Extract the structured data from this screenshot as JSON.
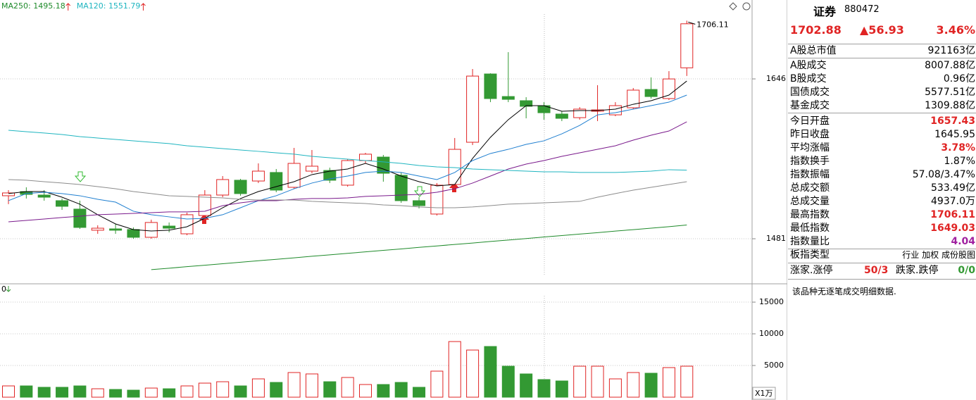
{
  "chart_data": [
    {
      "type": "candlestick",
      "ylim": [
        1434.5,
        1723.8
      ],
      "yticks": [
        1481,
        1646
      ],
      "up_color": "#e02424",
      "down_color": "#339933",
      "grid": true,
      "open": [
        1525.4,
        1529.7,
        1526.1,
        1520.3,
        1511.6,
        1489.8,
        1491.2,
        1490.5,
        1482.5,
        1494.1,
        1486.1,
        1505.0,
        1526.1,
        1541.4,
        1540.6,
        1549.4,
        1534.1,
        1550.8,
        1551.5,
        1536.3,
        1561.7,
        1565.3,
        1546.5,
        1520.3,
        1506.5,
        1537.0,
        1580.6,
        1651.1,
        1627.8,
        1623.5,
        1618.4,
        1609.7,
        1606.0,
        1612.6,
        1608.9,
        1616.2,
        1635.1,
        1625.7,
        1657.43
      ],
      "high": [
        1531.2,
        1534.1,
        1531.2,
        1522.5,
        1520.3,
        1494.9,
        1496.3,
        1492.7,
        1500.7,
        1497.8,
        1507.9,
        1531.2,
        1545.7,
        1542.8,
        1558.8,
        1553.0,
        1574.8,
        1572.6,
        1554.4,
        1563.2,
        1569.7,
        1567.5,
        1549.4,
        1523.9,
        1538.5,
        1585.0,
        1656.2,
        1651.8,
        1673.6,
        1627.1,
        1622.0,
        1612.6,
        1616.9,
        1639.5,
        1622.0,
        1636.6,
        1647.5,
        1654.0,
        1706.11
      ],
      "low": [
        1516.7,
        1522.5,
        1520.3,
        1510.8,
        1491.2,
        1486.1,
        1486.1,
        1481.0,
        1481.0,
        1487.6,
        1484.7,
        1502.1,
        1523.9,
        1525.4,
        1538.5,
        1529.0,
        1532.6,
        1548.6,
        1538.5,
        1534.8,
        1558.8,
        1539.9,
        1518.1,
        1512.3,
        1505.0,
        1531.2,
        1577.7,
        1622.0,
        1622.0,
        1605.3,
        1603.9,
        1602.4,
        1603.9,
        1602.4,
        1607.5,
        1614.8,
        1625.7,
        1624.2,
        1649.03
      ],
      "close": [
        1528.3,
        1526.8,
        1523.9,
        1514.5,
        1492.7,
        1491.9,
        1489.8,
        1482.5,
        1497.8,
        1491.9,
        1505.8,
        1526.1,
        1542.1,
        1527.6,
        1550.8,
        1531.2,
        1558.8,
        1555.9,
        1541.4,
        1561.7,
        1568.3,
        1548.6,
        1520.3,
        1515.2,
        1536.3,
        1573.3,
        1648.9,
        1625.7,
        1624.9,
        1617.7,
        1611.1,
        1605.3,
        1614.8,
        1614.0,
        1618.4,
        1634.4,
        1627.8,
        1645.95,
        1702.88
      ],
      "series": [
        {
          "color": "#000000",
          "values": [
            1527.6,
            1529.7,
            1529.7,
            1523.9,
            1516.7,
            1505.8,
            1496.3,
            1490.5,
            1489.0,
            1489.8,
            1493.4,
            1502.1,
            1513.0,
            1522.5,
            1529.7,
            1534.8,
            1539.9,
            1547.2,
            1550.8,
            1553.0,
            1558.8,
            1553.0,
            1545.7,
            1539.9,
            1535.5,
            1537.0,
            1563.9,
            1585.7,
            1603.9,
            1618.4,
            1618.4,
            1612.6,
            1613.3,
            1613.3,
            1614.8,
            1619.8,
            1623.5,
            1629.3,
            1643.8
          ]
        },
        {
          "color": "#1f7fd0",
          "values": [
            1520.3,
            1527.6,
            1529.0,
            1527.6,
            1525.4,
            1521.7,
            1518.8,
            1509.4,
            1505.8,
            1503.6,
            1501.4,
            1502.1,
            1505.8,
            1513.0,
            1520.3,
            1525.4,
            1532.6,
            1538.5,
            1542.8,
            1545.7,
            1549.4,
            1550.8,
            1549.4,
            1545.7,
            1542.1,
            1549.4,
            1561.7,
            1569.0,
            1573.3,
            1578.4,
            1582.1,
            1589.3,
            1598.0,
            1608.9,
            1611.1,
            1614.8,
            1618.4,
            1622.0,
            1629.3
          ]
        },
        {
          "color": "#7a1a8c",
          "values": [
            1498.5,
            1499.9,
            1501.4,
            1502.9,
            1504.3,
            1505.8,
            1506.5,
            1507.2,
            1507.9,
            1508.7,
            1508.7,
            1509.4,
            1515.2,
            1518.1,
            1520.3,
            1520.3,
            1521.7,
            1522.5,
            1522.5,
            1523.2,
            1524.7,
            1525.4,
            1526.1,
            1526.8,
            1529.0,
            1532.6,
            1538.5,
            1545.7,
            1553.0,
            1558.1,
            1561.7,
            1566.1,
            1569.7,
            1573.3,
            1577.0,
            1582.8,
            1587.9,
            1592.2,
            1601.7
          ]
        },
        {
          "color": "#8c8c8c",
          "values": [
            1542.1,
            1541.4,
            1539.9,
            1538.5,
            1537.0,
            1534.8,
            1532.6,
            1529.7,
            1527.6,
            1525.4,
            1524.7,
            1523.9,
            1523.2,
            1521.7,
            1521.0,
            1521.0,
            1521.0,
            1519.6,
            1518.8,
            1518.1,
            1517.4,
            1515.9,
            1515.2,
            1513.8,
            1513.0,
            1513.0,
            1513.8,
            1515.2,
            1516.7,
            1517.4,
            1518.1,
            1518.8,
            1519.6,
            1523.9,
            1527.6,
            1531.2,
            1534.1,
            1537.0,
            1539.9
          ]
        },
        {
          "name": "MA120",
          "color": "#1fb5c0",
          "values": [
            1593.0,
            1591.5,
            1590.1,
            1588.6,
            1586.4,
            1585.0,
            1583.5,
            1582.1,
            1580.6,
            1579.2,
            1577.0,
            1575.5,
            1574.1,
            1572.6,
            1571.2,
            1569.7,
            1568.3,
            1566.1,
            1564.6,
            1563.2,
            1561.7,
            1560.3,
            1558.8,
            1556.6,
            1555.2,
            1554.4,
            1553.0,
            1552.3,
            1551.5,
            1550.8,
            1550.1,
            1550.1,
            1549.4,
            1549.4,
            1549.4,
            1550.1,
            1550.8,
            1552.3,
            1551.79
          ]
        },
        {
          "name": "MA250",
          "color": "#1e8a2a",
          "values": [
            null,
            null,
            null,
            null,
            null,
            null,
            null,
            null,
            1449.1,
            1450.6,
            1452.2,
            1453.7,
            1455.2,
            1456.8,
            1458.3,
            1459.8,
            1461.3,
            1462.9,
            1464.4,
            1465.9,
            1467.5,
            1469.0,
            1470.5,
            1472.1,
            1473.6,
            1475.1,
            1476.6,
            1478.2,
            1479.7,
            1481.2,
            1482.8,
            1484.3,
            1485.8,
            1487.3,
            1488.9,
            1490.4,
            1491.9,
            1493.5,
            1495.18
          ]
        }
      ]
    },
    {
      "type": "bar",
      "title": "0",
      "y_unit": "X1万",
      "ylim": [
        0,
        17670
      ],
      "yticks": [
        5000,
        10000,
        15000
      ],
      "grid": true,
      "values": [
        1780,
        1780,
        1560,
        1560,
        1780,
        1330,
        1220,
        1110,
        1440,
        1330,
        1780,
        2220,
        2440,
        1780,
        2890,
        2330,
        3890,
        3670,
        2440,
        3110,
        2000,
        2000,
        2330,
        1560,
        4110,
        8780,
        7440,
        8000,
        4890,
        3670,
        2780,
        2560,
        4890,
        4890,
        2890,
        3890,
        3780,
        4670,
        4890
      ]
    }
  ],
  "quote": {
    "name": "证券",
    "code": "880472",
    "price": "1702.88",
    "change": "▲56.93",
    "change_pct": "3.46%"
  },
  "stats": [
    {
      "label": "A股总市值",
      "value": "921163亿"
    },
    {
      "label": "A股成交",
      "value": "8007.88亿"
    },
    {
      "label": "B股成交",
      "value": "0.96亿"
    },
    {
      "label": "国债成交",
      "value": "5577.51亿"
    },
    {
      "label": "基金成交",
      "value": "1309.88亿"
    },
    {
      "label": "今日开盘",
      "value": "1657.43",
      "color": "#e02424"
    },
    {
      "label": "昨日收盘",
      "value": "1645.95"
    },
    {
      "label": "平均涨幅",
      "value": "3.78%",
      "color": "#e02424"
    },
    {
      "label": "指数换手",
      "value": "1.87%"
    },
    {
      "label": "指数振幅",
      "value": "57.08/3.47%"
    },
    {
      "label": "总成交额",
      "value": "533.49亿"
    },
    {
      "label": "总成交量",
      "value": "4937.0万"
    },
    {
      "label": "最高指数",
      "value": "1706.11",
      "color": "#e02424"
    },
    {
      "label": "最低指数",
      "value": "1649.03",
      "color": "#e02424"
    },
    {
      "label": "指数量比",
      "value": "4.04",
      "color": "#a020a0"
    }
  ],
  "sector_type": {
    "label": "板指类型",
    "options": [
      "行业",
      "加权",
      "成份股图"
    ]
  },
  "breadth": {
    "up_label": "涨家.涨停",
    "up_value": "50/3",
    "down_label": "跌家.跌停",
    "down_value": "0/0"
  },
  "note": "该品种无逐笔成交明细数据."
}
